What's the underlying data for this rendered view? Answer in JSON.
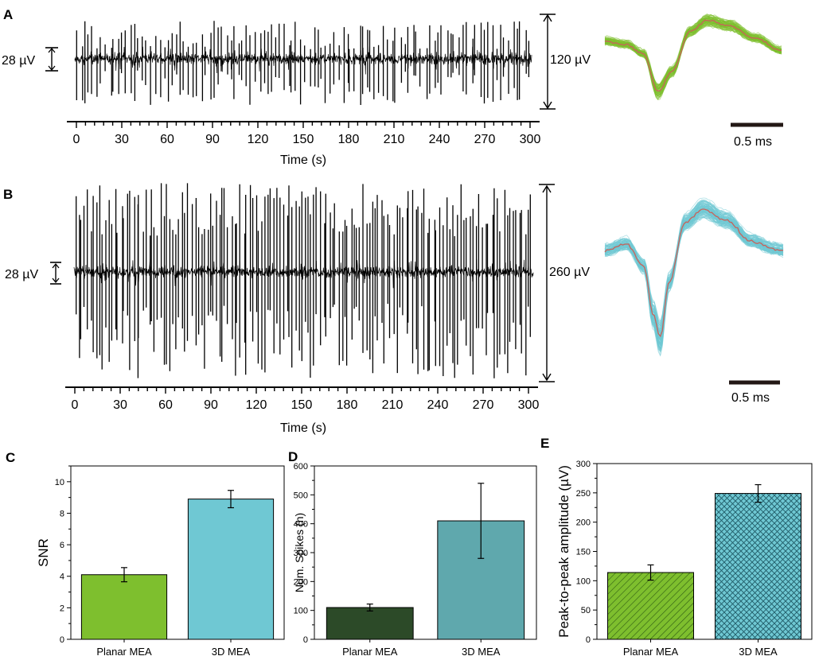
{
  "colors": {
    "green": "#7ebf2e",
    "cyan": "#6fc8d3",
    "darkgreen": "#2c4a28",
    "teal": "#5fa8ad",
    "mean": "#c8625a"
  },
  "panels": {
    "A": {
      "letter": "A",
      "baseline_scale": "28 µV",
      "amp_scale": "120 µV",
      "time_scale": "0.5 ms",
      "xlabel": "Time (s)",
      "ticks": [
        "0",
        "30",
        "60",
        "90",
        "120",
        "150",
        "180",
        "210",
        "240",
        "270",
        "300"
      ]
    },
    "B": {
      "letter": "B",
      "baseline_scale": "28 µV",
      "amp_scale": "260 µV",
      "time_scale": "0.5 ms",
      "xlabel": "Time (s)",
      "ticks": [
        "0",
        "30",
        "60",
        "90",
        "120",
        "150",
        "180",
        "210",
        "240",
        "270",
        "300"
      ]
    },
    "C": {
      "letter": "C"
    },
    "D": {
      "letter": "D"
    },
    "E": {
      "letter": "E"
    }
  },
  "chart_data": [
    {
      "type": "line",
      "title": "A",
      "xlabel": "Time (s)",
      "xlim": [
        0,
        300
      ],
      "description_values": {
        "noise_scale_uV": 28,
        "spike_scale_uV": 120,
        "waveform_scale_ms": 0.5
      }
    },
    {
      "type": "line",
      "title": "B",
      "xlabel": "Time (s)",
      "xlim": [
        0,
        300
      ],
      "description_values": {
        "noise_scale_uV": 28,
        "spike_scale_uV": 260,
        "waveform_scale_ms": 0.5
      }
    },
    {
      "type": "bar",
      "title": "C",
      "categories": [
        "Planar MEA",
        "3D MEA"
      ],
      "values": [
        4.1,
        8.9
      ],
      "errors": [
        0.45,
        0.55
      ],
      "ylabel": "SNR",
      "ylim": [
        0,
        11
      ],
      "yticks": [
        "0",
        "2",
        "4",
        "6",
        "8",
        "10"
      ],
      "ytick_values": [
        0,
        2,
        4,
        6,
        8,
        10
      ]
    },
    {
      "type": "bar",
      "title": "D",
      "categories": [
        "Planar MEA",
        "3D MEA"
      ],
      "values": [
        110,
        410
      ],
      "errors": [
        12,
        130
      ],
      "ylabel": "Num. Spikes (n)",
      "ylim": [
        0,
        600
      ],
      "yticks": [
        "0",
        "100",
        "200",
        "300",
        "400",
        "500",
        "600"
      ],
      "ytick_values": [
        0,
        100,
        200,
        300,
        400,
        500,
        600
      ]
    },
    {
      "type": "bar",
      "title": "E",
      "categories": [
        "Planar MEA",
        "3D MEA"
      ],
      "values": [
        114,
        249
      ],
      "errors": [
        13,
        15
      ],
      "ylabel": "Peak-to-peak amplitude (µV)",
      "ylim": [
        0,
        300
      ],
      "yticks": [
        "0",
        "50",
        "100",
        "150",
        "200",
        "250",
        "300"
      ],
      "ytick_values": [
        0,
        50,
        100,
        150,
        200,
        250,
        300
      ]
    }
  ]
}
